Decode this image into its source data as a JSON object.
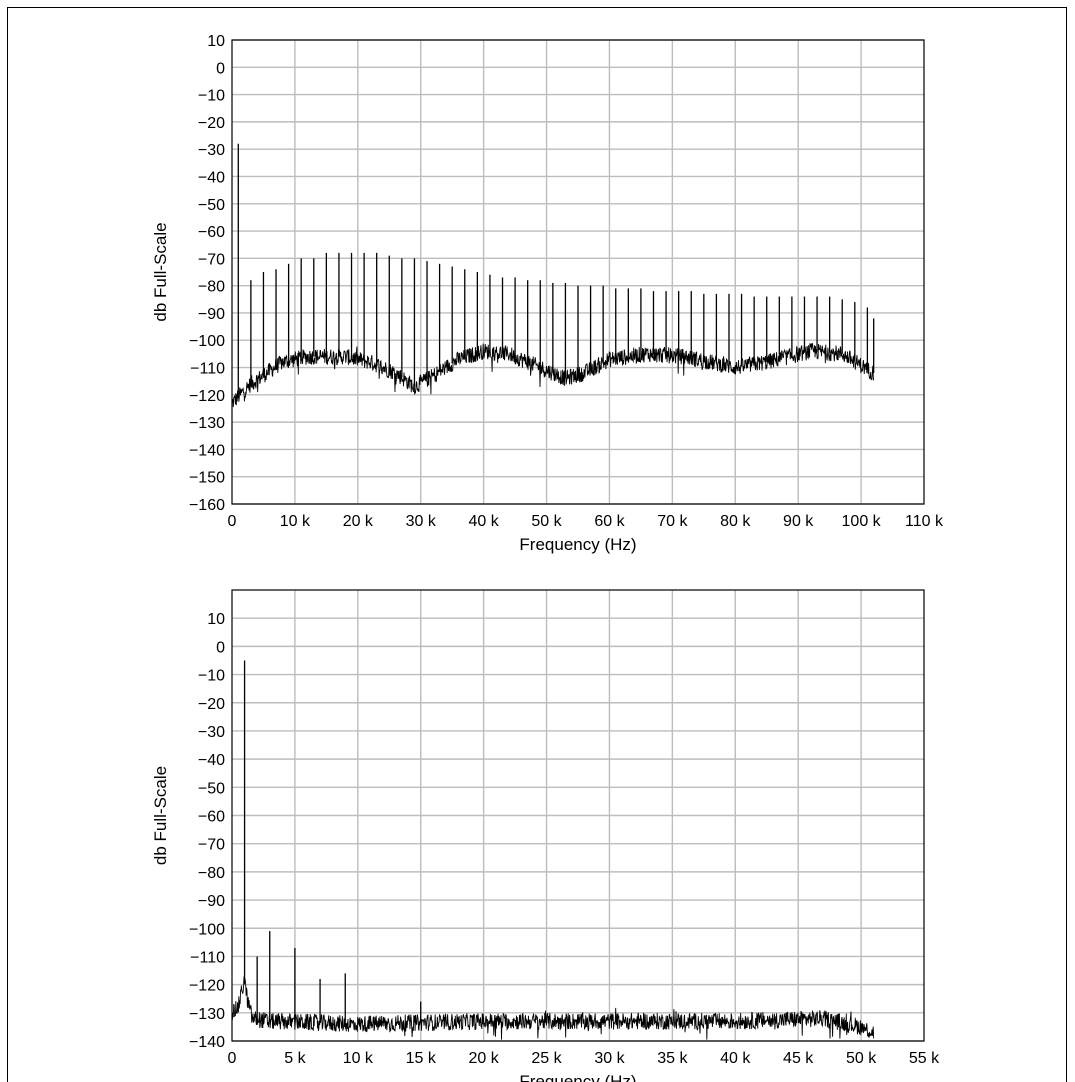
{
  "chart_data": [
    {
      "type": "line",
      "title": "",
      "xlabel": "Frequency (Hz)",
      "ylabel": "db Full-Scale",
      "xlim": [
        0,
        110000
      ],
      "ylim": [
        -160,
        10
      ],
      "grid": true,
      "x_tick_labels": [
        "0",
        "10 k",
        "20 k",
        "30 k",
        "40 k",
        "50 k",
        "60 k",
        "70 k",
        "80 k",
        "90 k",
        "100 k",
        "110 k"
      ],
      "y_tick_labels": [
        "10",
        "0",
        "−10",
        "−20",
        "−30",
        "−40",
        "−50",
        "−60",
        "−70",
        "−80",
        "−90",
        "−100",
        "−110",
        "−120",
        "−130",
        "−140",
        "−150",
        "−160"
      ],
      "noise_floor": [
        [
          0,
          -123
        ],
        [
          3000,
          -116
        ],
        [
          8000,
          -108
        ],
        [
          12000,
          -106
        ],
        [
          18000,
          -106
        ],
        [
          22000,
          -108
        ],
        [
          26000,
          -112
        ],
        [
          29000,
          -117
        ],
        [
          32000,
          -113
        ],
        [
          36000,
          -107
        ],
        [
          40000,
          -104
        ],
        [
          44000,
          -105
        ],
        [
          48000,
          -109
        ],
        [
          53000,
          -114
        ],
        [
          56000,
          -112
        ],
        [
          60000,
          -107
        ],
        [
          66000,
          -105
        ],
        [
          72000,
          -106
        ],
        [
          76000,
          -108
        ],
        [
          80000,
          -110
        ],
        [
          85000,
          -108
        ],
        [
          92000,
          -104
        ],
        [
          97000,
          -105
        ],
        [
          102000,
          -112
        ]
      ],
      "harmonics": [
        [
          1000,
          -28
        ],
        [
          3000,
          -78
        ],
        [
          5000,
          -75
        ],
        [
          7000,
          -74
        ],
        [
          9000,
          -72
        ],
        [
          11000,
          -70
        ],
        [
          13000,
          -70
        ],
        [
          15000,
          -68
        ],
        [
          17000,
          -68
        ],
        [
          19000,
          -68
        ],
        [
          21000,
          -68
        ],
        [
          23000,
          -68
        ],
        [
          25000,
          -69
        ],
        [
          27000,
          -70
        ],
        [
          29000,
          -70
        ],
        [
          31000,
          -71
        ],
        [
          33000,
          -72
        ],
        [
          35000,
          -73
        ],
        [
          37000,
          -74
        ],
        [
          39000,
          -75
        ],
        [
          41000,
          -76
        ],
        [
          43000,
          -77
        ],
        [
          45000,
          -77
        ],
        [
          47000,
          -78
        ],
        [
          49000,
          -78
        ],
        [
          51000,
          -79
        ],
        [
          53000,
          -79
        ],
        [
          55000,
          -80
        ],
        [
          57000,
          -80
        ],
        [
          59000,
          -80
        ],
        [
          61000,
          -81
        ],
        [
          63000,
          -81
        ],
        [
          65000,
          -81
        ],
        [
          67000,
          -82
        ],
        [
          69000,
          -82
        ],
        [
          71000,
          -82
        ],
        [
          73000,
          -82
        ],
        [
          75000,
          -83
        ],
        [
          77000,
          -83
        ],
        [
          79000,
          -83
        ],
        [
          81000,
          -83
        ],
        [
          83000,
          -84
        ],
        [
          85000,
          -84
        ],
        [
          87000,
          -84
        ],
        [
          89000,
          -84
        ],
        [
          91000,
          -84
        ],
        [
          93000,
          -84
        ],
        [
          95000,
          -84
        ],
        [
          97000,
          -85
        ],
        [
          99000,
          -86
        ],
        [
          101000,
          -88
        ],
        [
          102000,
          -92
        ]
      ]
    },
    {
      "type": "line",
      "title": "",
      "xlabel": "Frequency (Hz)",
      "ylabel": "db Full-Scale",
      "xlim": [
        0,
        55000
      ],
      "ylim": [
        -140,
        20
      ],
      "grid": true,
      "x_tick_labels": [
        "0",
        "5 k",
        "10 k",
        "15 k",
        "20 k",
        "25 k",
        "30 k",
        "35 k",
        "40 k",
        "45 k",
        "50 k",
        "55 k"
      ],
      "y_tick_labels": [
        "10",
        "0",
        "−10",
        "−20",
        "−30",
        "−40",
        "−50",
        "−60",
        "−70",
        "−80",
        "−90",
        "−100",
        "−110",
        "−120",
        "−130",
        "−140"
      ],
      "noise_floor": [
        [
          0,
          -130
        ],
        [
          500,
          -128
        ],
        [
          800,
          -122
        ],
        [
          1000,
          -118
        ],
        [
          1200,
          -125
        ],
        [
          1600,
          -132
        ],
        [
          3000,
          -133
        ],
        [
          10000,
          -134
        ],
        [
          20000,
          -133
        ],
        [
          30000,
          -133
        ],
        [
          40000,
          -133
        ],
        [
          47000,
          -132
        ],
        [
          50000,
          -135
        ],
        [
          51000,
          -137
        ]
      ],
      "harmonics": [
        [
          1000,
          -5
        ],
        [
          2000,
          -110
        ],
        [
          3000,
          -101
        ],
        [
          5000,
          -107
        ],
        [
          7000,
          -118
        ],
        [
          9000,
          -116
        ],
        [
          15000,
          -126
        ]
      ]
    }
  ]
}
